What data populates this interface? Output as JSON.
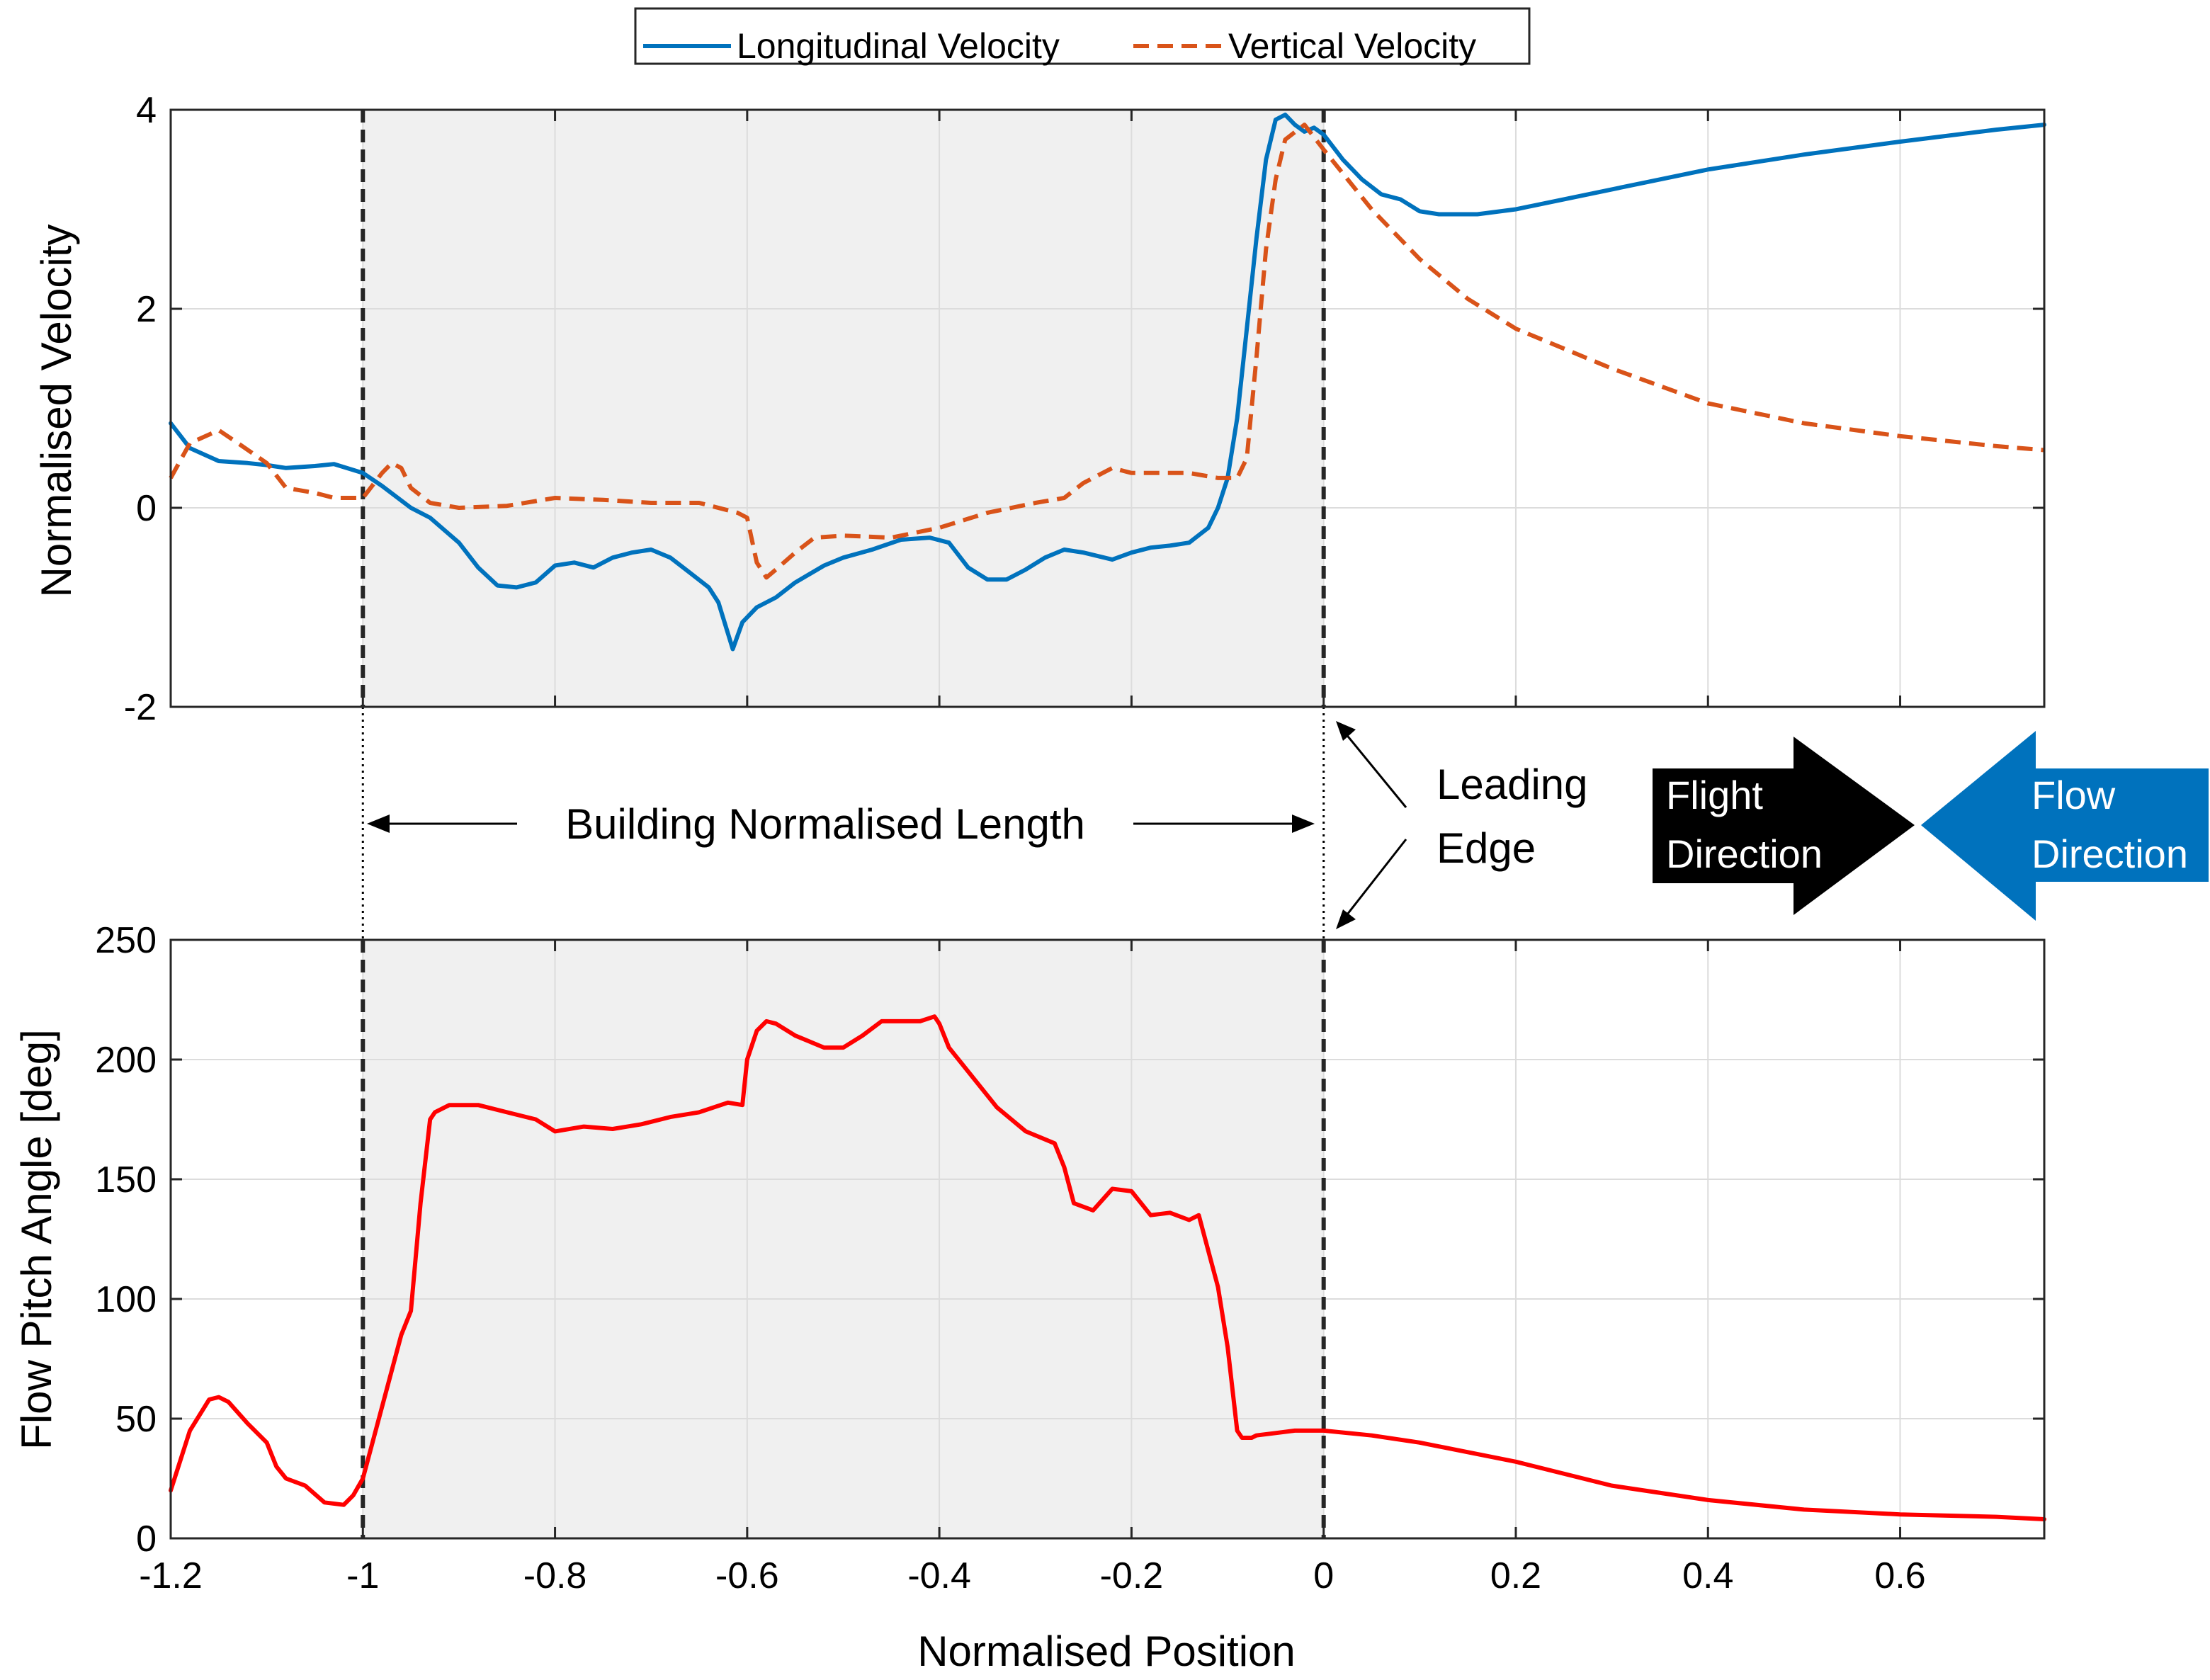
{
  "chart_data": [
    {
      "type": "line",
      "title": "",
      "xlabel": "",
      "ylabel": "Normalised Velocity",
      "xlim": [
        -1.2,
        0.75
      ],
      "ylim": [
        -2,
        4
      ],
      "xticks": [
        -1.2,
        -1,
        -0.8,
        -0.6,
        -0.4,
        -0.2,
        0,
        0.2,
        0.4,
        0.6
      ],
      "yticks": [
        -2,
        0,
        2,
        4
      ],
      "ytick_labels": [
        "-2",
        "0",
        "2",
        "4"
      ],
      "grid": true,
      "shaded_region": [
        -1,
        0
      ],
      "vlines": [
        -1,
        0
      ],
      "legend": {
        "placement": "top-center",
        "entries": [
          "Longitudinal Velocity",
          "Vertical Velocity"
        ]
      },
      "series": [
        {
          "name": "Longitudinal Velocity",
          "color": "#0072BD",
          "style": "solid",
          "x": [
            -1.2,
            -1.18,
            -1.15,
            -1.12,
            -1.1,
            -1.08,
            -1.05,
            -1.03,
            -1.0,
            -0.98,
            -0.95,
            -0.93,
            -0.9,
            -0.88,
            -0.86,
            -0.84,
            -0.82,
            -0.8,
            -0.78,
            -0.76,
            -0.74,
            -0.72,
            -0.7,
            -0.68,
            -0.66,
            -0.64,
            -0.63,
            -0.615,
            -0.605,
            -0.59,
            -0.57,
            -0.55,
            -0.52,
            -0.5,
            -0.47,
            -0.44,
            -0.41,
            -0.39,
            -0.37,
            -0.35,
            -0.33,
            -0.31,
            -0.29,
            -0.27,
            -0.25,
            -0.22,
            -0.2,
            -0.18,
            -0.16,
            -0.14,
            -0.12,
            -0.11,
            -0.1,
            -0.09,
            -0.08,
            -0.07,
            -0.06,
            -0.05,
            -0.04,
            -0.03,
            -0.02,
            -0.01,
            0.0,
            0.02,
            0.04,
            0.06,
            0.08,
            0.1,
            0.12,
            0.16,
            0.2,
            0.3,
            0.4,
            0.5,
            0.6,
            0.7,
            0.75
          ],
          "y": [
            0.85,
            0.6,
            0.47,
            0.45,
            0.43,
            0.4,
            0.42,
            0.44,
            0.35,
            0.22,
            0.0,
            -0.1,
            -0.35,
            -0.6,
            -0.78,
            -0.8,
            -0.75,
            -0.58,
            -0.55,
            -0.6,
            -0.5,
            -0.45,
            -0.42,
            -0.5,
            -0.65,
            -0.8,
            -0.95,
            -1.42,
            -1.15,
            -1.0,
            -0.9,
            -0.75,
            -0.58,
            -0.5,
            -0.42,
            -0.32,
            -0.3,
            -0.35,
            -0.6,
            -0.72,
            -0.72,
            -0.62,
            -0.5,
            -0.42,
            -0.45,
            -0.52,
            -0.45,
            -0.4,
            -0.38,
            -0.35,
            -0.2,
            0.0,
            0.3,
            0.9,
            1.8,
            2.7,
            3.5,
            3.9,
            3.95,
            3.85,
            3.78,
            3.82,
            3.75,
            3.5,
            3.3,
            3.15,
            3.1,
            2.98,
            2.95,
            2.95,
            3.0,
            3.2,
            3.4,
            3.55,
            3.68,
            3.8,
            3.85
          ]
        },
        {
          "name": "Vertical Velocity",
          "color": "#D95319",
          "style": "dashed",
          "x": [
            -1.2,
            -1.18,
            -1.15,
            -1.13,
            -1.1,
            -1.08,
            -1.05,
            -1.03,
            -1.0,
            -0.98,
            -0.97,
            -0.96,
            -0.95,
            -0.93,
            -0.9,
            -0.85,
            -0.8,
            -0.75,
            -0.7,
            -0.65,
            -0.61,
            -0.6,
            -0.59,
            -0.58,
            -0.57,
            -0.55,
            -0.53,
            -0.5,
            -0.45,
            -0.4,
            -0.35,
            -0.3,
            -0.27,
            -0.25,
            -0.22,
            -0.2,
            -0.17,
            -0.14,
            -0.11,
            -0.09,
            -0.08,
            -0.07,
            -0.06,
            -0.05,
            -0.04,
            -0.02,
            0.0,
            0.05,
            0.1,
            0.15,
            0.2,
            0.3,
            0.4,
            0.5,
            0.6,
            0.7,
            0.75
          ],
          "y": [
            0.3,
            0.65,
            0.78,
            0.65,
            0.45,
            0.2,
            0.15,
            0.1,
            0.1,
            0.35,
            0.45,
            0.4,
            0.2,
            0.05,
            0.0,
            0.02,
            0.1,
            0.08,
            0.05,
            0.05,
            -0.05,
            -0.1,
            -0.55,
            -0.7,
            -0.62,
            -0.45,
            -0.3,
            -0.28,
            -0.3,
            -0.2,
            -0.05,
            0.05,
            0.1,
            0.25,
            0.4,
            0.35,
            0.35,
            0.35,
            0.3,
            0.3,
            0.5,
            1.5,
            2.6,
            3.3,
            3.7,
            3.85,
            3.6,
            3.0,
            2.5,
            2.1,
            1.8,
            1.4,
            1.05,
            0.85,
            0.72,
            0.62,
            0.58
          ]
        }
      ]
    },
    {
      "type": "line",
      "title": "",
      "xlabel": "Normalised Position",
      "ylabel": "Flow Pitch Angle [deg]",
      "xlim": [
        -1.2,
        0.75
      ],
      "ylim": [
        0,
        250
      ],
      "xticks": [
        -1.2,
        -1,
        -0.8,
        -0.6,
        -0.4,
        -0.2,
        0,
        0.2,
        0.4,
        0.6
      ],
      "xtick_labels": [
        "-1.2",
        "-1",
        "-0.8",
        "-0.6",
        "-0.4",
        "-0.2",
        "0",
        "0.2",
        "0.4",
        "0.6"
      ],
      "yticks": [
        0,
        50,
        100,
        150,
        200,
        250
      ],
      "ytick_labels": [
        "0",
        "50",
        "100",
        "150",
        "200",
        "250"
      ],
      "grid": true,
      "shaded_region": [
        -1,
        0
      ],
      "vlines": [
        -1,
        0
      ],
      "series": [
        {
          "name": "Flow Pitch Angle",
          "color": "#FF0000",
          "style": "solid",
          "x": [
            -1.2,
            -1.18,
            -1.16,
            -1.15,
            -1.14,
            -1.12,
            -1.1,
            -1.09,
            -1.08,
            -1.06,
            -1.04,
            -1.02,
            -1.01,
            -1.0,
            -0.98,
            -0.96,
            -0.95,
            -0.94,
            -0.93,
            -0.925,
            -0.91,
            -0.88,
            -0.85,
            -0.82,
            -0.8,
            -0.77,
            -0.74,
            -0.71,
            -0.68,
            -0.65,
            -0.62,
            -0.605,
            -0.6,
            -0.59,
            -0.58,
            -0.57,
            -0.55,
            -0.52,
            -0.5,
            -0.48,
            -0.46,
            -0.44,
            -0.42,
            -0.405,
            -0.4,
            -0.39,
            -0.37,
            -0.34,
            -0.31,
            -0.28,
            -0.27,
            -0.26,
            -0.24,
            -0.22,
            -0.2,
            -0.18,
            -0.16,
            -0.14,
            -0.13,
            -0.11,
            -0.1,
            -0.09,
            -0.085,
            -0.08,
            -0.075,
            -0.07,
            -0.05,
            -0.03,
            0.0,
            0.05,
            0.1,
            0.2,
            0.3,
            0.4,
            0.5,
            0.6,
            0.7,
            0.75
          ],
          "y": [
            20,
            45,
            58,
            59,
            57,
            48,
            40,
            30,
            25,
            22,
            15,
            14,
            18,
            25,
            55,
            85,
            95,
            140,
            175,
            178,
            181,
            181,
            178,
            175,
            170,
            172,
            171,
            173,
            176,
            178,
            182,
            181,
            200,
            212,
            216,
            215,
            210,
            205,
            205,
            210,
            216,
            216,
            216,
            218,
            215,
            205,
            195,
            180,
            170,
            165,
            155,
            140,
            137,
            146,
            145,
            135,
            136,
            133,
            135,
            105,
            80,
            45,
            42,
            42,
            42,
            43,
            44,
            45,
            45,
            43,
            40,
            32,
            22,
            16,
            12,
            10,
            9,
            8
          ]
        }
      ]
    }
  ],
  "legend": {
    "longitudinal_label": "Longitudinal Velocity",
    "vertical_label": "Vertical Velocity"
  },
  "annotations": {
    "building_length": "Building Normalised Length",
    "leading_edge_line1": "Leading",
    "leading_edge_line2": "Edge",
    "flight_line1": "Flight",
    "flight_line2": "Direction",
    "flow_line1": "Flow",
    "flow_line2": "Direction",
    "flight_color": "#000000",
    "flow_color": "#0072BD"
  }
}
